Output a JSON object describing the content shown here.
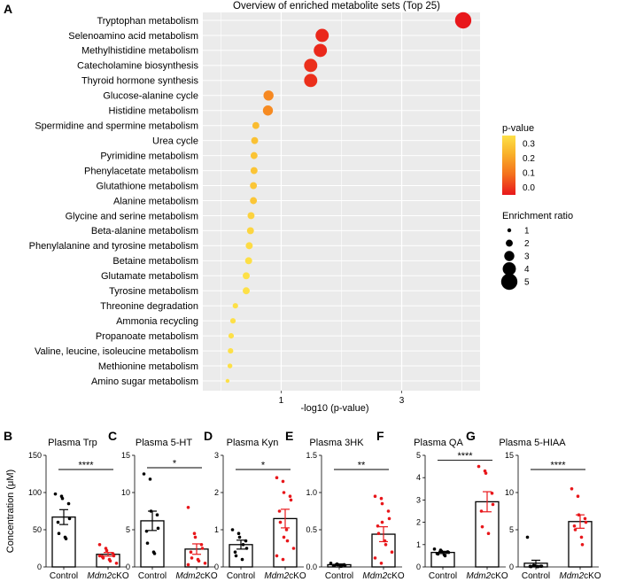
{
  "chart_data": [
    {
      "panel": "A",
      "type": "scatter",
      "title": "Overview of enriched metabolite sets (Top 25)",
      "xlabel": "-log10 (p-value)",
      "x_ticks": [
        "1",
        "3"
      ],
      "xlim": [
        -0.3,
        4.3
      ],
      "categories": [
        "Tryptophan metabolism",
        "Selenoamino acid metabolism",
        "Methylhistidine metabolism",
        "Catecholamine biosynthesis",
        "Thyroid hormone synthesis",
        "Glucose-alanine cycle",
        "Histidine metabolism",
        "Spermidine and spermine metabolism",
        "Urea cycle",
        "Pyrimidine metabolism",
        "Phenylacetate metabolism",
        "Glutathione metabolism",
        "Alanine metabolism",
        "Glycine and serine metabolism",
        "Beta-alanine metabolism",
        "Phenylalanine and tyrosine metabolism",
        "Betaine metabolism",
        "Glutamate metabolism",
        "Tyrosine metabolism",
        "Threonine degradation",
        "Ammonia recycling",
        "Propanoate metabolism",
        "Valine, leucine, isoleucine metabolism",
        "Methionine metabolism",
        "Amino sugar metabolism"
      ],
      "x": [
        4.02,
        1.68,
        1.65,
        1.49,
        1.49,
        0.79,
        0.78,
        0.58,
        0.56,
        0.55,
        0.55,
        0.54,
        0.54,
        0.5,
        0.49,
        0.47,
        0.46,
        0.42,
        0.42,
        0.24,
        0.2,
        0.17,
        0.16,
        0.15,
        0.11
      ],
      "p_value": [
        0.0001,
        0.021,
        0.022,
        0.032,
        0.032,
        0.162,
        0.166,
        0.263,
        0.275,
        0.282,
        0.282,
        0.288,
        0.288,
        0.316,
        0.324,
        0.339,
        0.347,
        0.38,
        0.38,
        0.575,
        0.631,
        0.676,
        0.692,
        0.708,
        0.776
      ],
      "enrichment_ratio": [
        5,
        4,
        4,
        4,
        4,
        3,
        3,
        2,
        2,
        2,
        2,
        2,
        2,
        2,
        2,
        2,
        2,
        2,
        2,
        1.5,
        1.5,
        1.5,
        1.5,
        1.3,
        1
      ],
      "color_legend": {
        "title": "p-value",
        "ticks": [
          "0.3",
          "0.2",
          "0.1",
          "0.0"
        ],
        "colors": [
          "#e8171b",
          "#f4711c",
          "#f9b22a",
          "#fde047"
        ]
      },
      "size_legend": {
        "title": "Enrichment ratio",
        "ticks": [
          "1",
          "2",
          "3",
          "4",
          "5"
        ]
      }
    },
    {
      "panel": "B",
      "type": "bar",
      "title": "Plasma Trp",
      "ylabel": "Concentration (μM)",
      "ylim": [
        0,
        150
      ],
      "yticks": [
        "0",
        "50",
        "100",
        "150"
      ],
      "categories": [
        "Control",
        "Mdm2cKO"
      ],
      "values": [
        67,
        17
      ],
      "sem": [
        10,
        2.5
      ],
      "points": [
        [
          98,
          95,
          92,
          85,
          65,
          60,
          45,
          40,
          38
        ],
        [
          30,
          25,
          22,
          18,
          15,
          14,
          12,
          10,
          8,
          5,
          15
        ]
      ],
      "significance": "****"
    },
    {
      "panel": "C",
      "type": "bar",
      "title": "Plasma 5-HT",
      "ylim": [
        0,
        15
      ],
      "yticks": [
        "0",
        "5",
        "10",
        "15"
      ],
      "categories": [
        "Control",
        "Mdm2cKO"
      ],
      "values": [
        6.2,
        2.4
      ],
      "sem": [
        1.3,
        0.7
      ],
      "points": [
        [
          12.5,
          11.8,
          7.5,
          7,
          5.2,
          4.8,
          3.2,
          2,
          1.8
        ],
        [
          8,
          4.5,
          4,
          3,
          2.5,
          2,
          1.2,
          1,
          0.8,
          0.5,
          0.3
        ]
      ],
      "significance": "*"
    },
    {
      "panel": "D",
      "type": "bar",
      "title": "Plasma Kyn",
      "ylim": [
        0,
        3
      ],
      "yticks": [
        "0",
        "1",
        "2",
        "3"
      ],
      "categories": [
        "Control",
        "Mdm2cKO"
      ],
      "values": [
        0.6,
        1.3
      ],
      "sem": [
        0.12,
        0.25
      ],
      "points": [
        [
          1,
          0.9,
          0.8,
          0.7,
          0.5,
          0.4,
          0.3,
          0.2,
          0.6
        ],
        [
          2.4,
          2.3,
          2.0,
          1.9,
          1.8,
          1.5,
          1.2,
          1.0,
          0.7,
          0.5,
          0.3,
          0.2,
          0.8
        ]
      ],
      "significance": "*"
    },
    {
      "panel": "E",
      "type": "bar",
      "title": "Plasma 3HK",
      "ylim": [
        0,
        1.5
      ],
      "yticks": [
        "0.0",
        "0.5",
        "1.0",
        "1.5"
      ],
      "categories": [
        "Control",
        "Mdm2cKO"
      ],
      "values": [
        0.03,
        0.44
      ],
      "sem": [
        0.01,
        0.1
      ],
      "points": [
        [
          0.05,
          0.04,
          0.03,
          0.03,
          0.02,
          0.02,
          0.02,
          0.01,
          0.01
        ],
        [
          0.95,
          0.92,
          0.85,
          0.75,
          0.65,
          0.55,
          0.45,
          0.35,
          0.3,
          0.2,
          0.12,
          0.05,
          0.6
        ]
      ],
      "significance": "**"
    },
    {
      "panel": "F",
      "type": "bar",
      "title": "Plasma QA",
      "ylim": [
        0,
        5
      ],
      "yticks": [
        "0",
        "1",
        "2",
        "3",
        "4",
        "5"
      ],
      "categories": [
        "Control",
        "Mdm2cKO"
      ],
      "values": [
        0.65,
        2.92
      ],
      "sem": [
        0.05,
        0.45
      ],
      "points": [
        [
          0.8,
          0.75,
          0.7,
          0.68,
          0.65,
          0.6,
          0.58,
          0.55,
          0.5
        ],
        [
          4.5,
          4.3,
          4.2,
          3.3,
          2.8,
          2.5,
          1.8,
          1.5
        ]
      ],
      "significance": "****"
    },
    {
      "panel": "G",
      "type": "bar",
      "title": "Plasma 5-HIAA",
      "ylim": [
        0,
        15
      ],
      "yticks": [
        "0",
        "5",
        "10",
        "15"
      ],
      "categories": [
        "Control",
        "Mdm2cKO"
      ],
      "values": [
        0.5,
        6.1
      ],
      "sem": [
        0.4,
        0.9
      ],
      "points": [
        [
          4,
          0.2,
          0.15,
          0.1,
          0.1,
          0.08,
          0.05,
          0.05,
          0.05
        ],
        [
          10.5,
          9.5,
          7,
          6.5,
          6,
          5.5,
          5,
          4,
          3
        ]
      ],
      "significance": "****"
    }
  ]
}
